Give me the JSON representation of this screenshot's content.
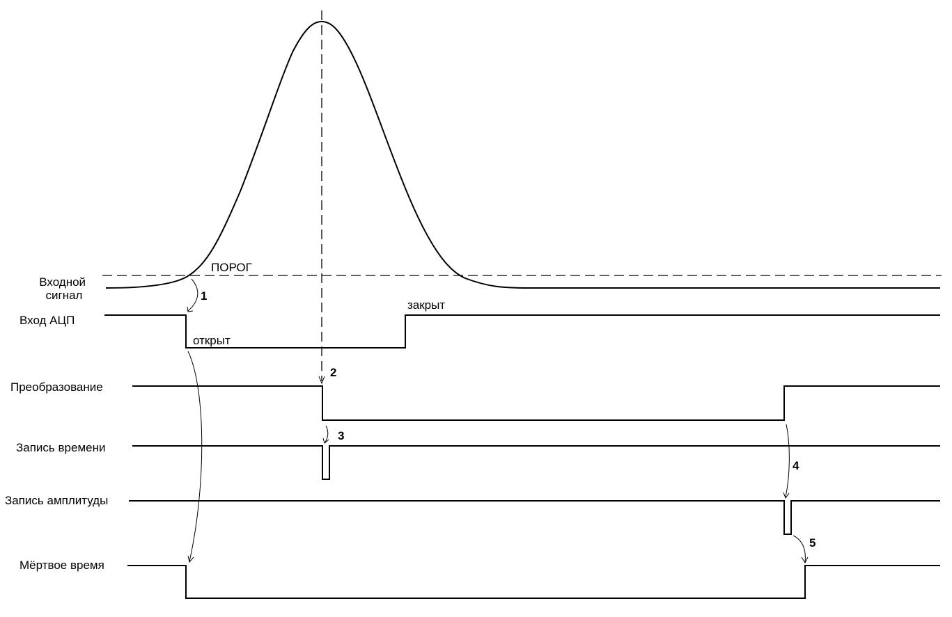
{
  "signals": {
    "input": "Входной\nсигнал",
    "adc_input": "Вход АЦП",
    "conversion": "Преобразование",
    "time_record": "Запись времени",
    "amplitude_record": "Запись амплитуды",
    "dead_time": "Мёртвое время"
  },
  "annotations": {
    "threshold": "ПОРОГ",
    "open": "открыт",
    "closed": "закрыт"
  },
  "steps": [
    "1",
    "2",
    "3",
    "4",
    "5"
  ],
  "colors": {
    "stroke": "#000000",
    "background": "#ffffff"
  }
}
